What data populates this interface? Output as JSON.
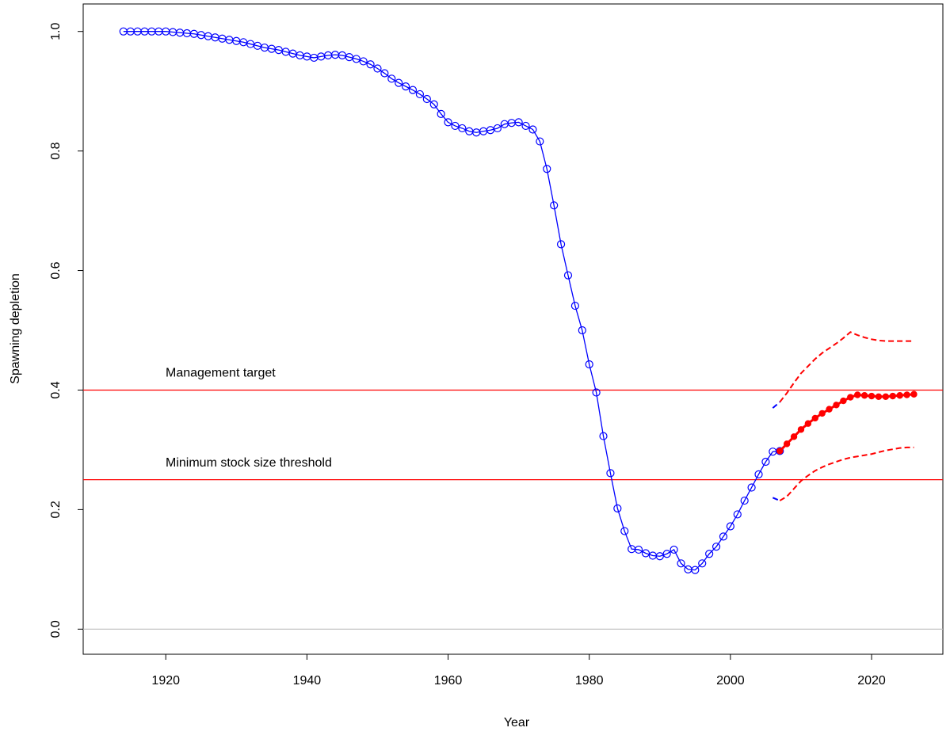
{
  "chart_data": {
    "type": "line",
    "x_label": "Year",
    "y_label": "Spawning depletion",
    "xlim": [
      1908.3,
      2030.1
    ],
    "ylim": [
      -0.042,
      1.046
    ],
    "xticks": [
      1920,
      1940,
      1960,
      1980,
      2000,
      2020
    ],
    "yticks": [
      {
        "value": 0,
        "label": "0.0"
      },
      0.2,
      0.4,
      0.6,
      0.8,
      {
        "value": 1,
        "label": "1.0"
      }
    ],
    "reference_lines": [
      {
        "value": 0,
        "color": "#bebebe"
      },
      {
        "value": 0.4,
        "label": "Management target",
        "color": "#ff0000"
      },
      {
        "value": 0.25,
        "label": "Minimum stock size threshold",
        "color": "#ff0000"
      }
    ],
    "series": [
      {
        "color": "#0000ff",
        "style": "open-points",
        "x": [
          1914,
          1915,
          1916,
          1917,
          1918,
          1919,
          1920,
          1921,
          1922,
          1923,
          1924,
          1925,
          1926,
          1927,
          1928,
          1929,
          1930,
          1931,
          1932,
          1933,
          1934,
          1935,
          1936,
          1937,
          1938,
          1939,
          1940,
          1941,
          1942,
          1943,
          1944,
          1945,
          1946,
          1947,
          1948,
          1949,
          1950,
          1951,
          1952,
          1953,
          1954,
          1955,
          1956,
          1957,
          1958,
          1959,
          1960,
          1961,
          1962,
          1963,
          1964,
          1965,
          1966,
          1967,
          1968,
          1969,
          1970,
          1971,
          1972,
          1973,
          1974,
          1975,
          1976,
          1977,
          1978,
          1979,
          1980,
          1981,
          1982,
          1983,
          1984,
          1985,
          1986,
          1987,
          1988,
          1989,
          1990,
          1991,
          1992,
          1993,
          1994,
          1995,
          1996,
          1997,
          1998,
          1999,
          2000,
          2001,
          2002,
          2003,
          2004,
          2005,
          2006,
          2007
        ],
        "values": [
          1.0,
          1.0,
          1.0,
          1.0,
          1.0,
          1.0,
          1.0,
          0.999,
          0.998,
          0.997,
          0.996,
          0.994,
          0.992,
          0.99,
          0.988,
          0.986,
          0.984,
          0.982,
          0.979,
          0.976,
          0.973,
          0.971,
          0.969,
          0.966,
          0.963,
          0.96,
          0.958,
          0.956,
          0.958,
          0.96,
          0.961,
          0.96,
          0.957,
          0.954,
          0.95,
          0.945,
          0.938,
          0.93,
          0.921,
          0.914,
          0.908,
          0.902,
          0.895,
          0.887,
          0.878,
          0.862,
          0.848,
          0.842,
          0.838,
          0.833,
          0.831,
          0.833,
          0.835,
          0.838,
          0.845,
          0.847,
          0.848,
          0.842,
          0.836,
          0.816,
          0.77,
          0.709,
          0.644,
          0.592,
          0.541,
          0.5,
          0.443,
          0.396,
          0.323,
          0.261,
          0.202,
          0.164,
          0.134,
          0.133,
          0.127,
          0.123,
          0.122,
          0.126,
          0.133,
          0.11,
          0.1,
          0.099,
          0.11,
          0.126,
          0.138,
          0.155,
          0.172,
          0.192,
          0.215,
          0.237,
          0.259,
          0.28,
          0.297,
          0.298
        ]
      },
      {
        "color": "#ff0000",
        "style": "filled-points",
        "x": [
          2007,
          2008,
          2009,
          2010,
          2011,
          2012,
          2013,
          2014,
          2015,
          2016,
          2017,
          2018,
          2019,
          2020,
          2021,
          2022,
          2023,
          2024,
          2025,
          2026
        ],
        "values": [
          0.298,
          0.31,
          0.322,
          0.334,
          0.344,
          0.353,
          0.361,
          0.368,
          0.375,
          0.382,
          0.388,
          0.392,
          0.391,
          0.39,
          0.389,
          0.389,
          0.39,
          0.391,
          0.392,
          0.393
        ]
      },
      {
        "color": "#ff0000",
        "style": "dashed",
        "x": [
          2007,
          2008,
          2009,
          2010,
          2011,
          2012,
          2013,
          2014,
          2015,
          2016,
          2017,
          2018,
          2019,
          2020,
          2021,
          2022,
          2023,
          2024,
          2025,
          2026
        ],
        "values": [
          0.38,
          0.395,
          0.412,
          0.428,
          0.44,
          0.452,
          0.462,
          0.47,
          0.478,
          0.487,
          0.497,
          0.492,
          0.488,
          0.485,
          0.483,
          0.482,
          0.482,
          0.482,
          0.482,
          0.482
        ]
      },
      {
        "color": "#ff0000",
        "style": "dashed",
        "x": [
          2007,
          2008,
          2009,
          2010,
          2011,
          2012,
          2013,
          2014,
          2015,
          2016,
          2017,
          2018,
          2019,
          2020,
          2021,
          2022,
          2023,
          2024,
          2025,
          2026
        ],
        "values": [
          0.215,
          0.222,
          0.235,
          0.248,
          0.257,
          0.265,
          0.271,
          0.276,
          0.28,
          0.284,
          0.287,
          0.289,
          0.291,
          0.293,
          0.296,
          0.299,
          0.301,
          0.303,
          0.304,
          0.304
        ]
      },
      {
        "color": "#0000ff",
        "style": "dashed",
        "x": [
          2006,
          2007
        ],
        "values": [
          0.37,
          0.38
        ]
      },
      {
        "color": "#0000ff",
        "style": "dashed",
        "x": [
          2006,
          2007
        ],
        "values": [
          0.22,
          0.215
        ]
      }
    ]
  }
}
